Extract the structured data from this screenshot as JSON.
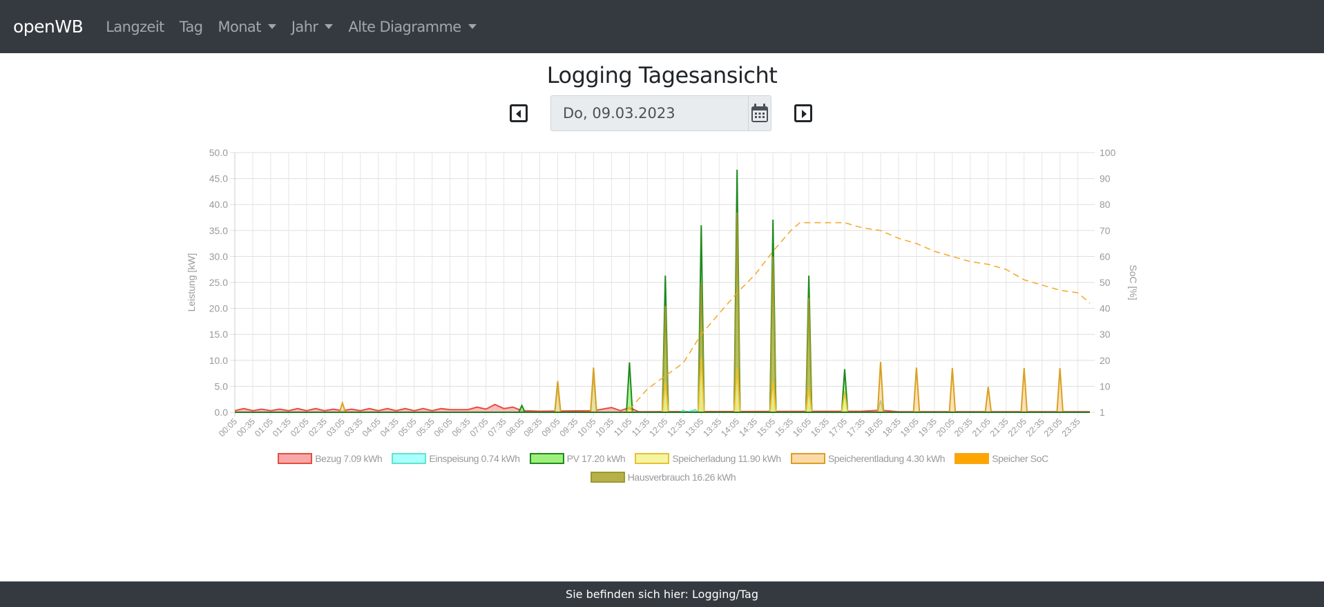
{
  "nav": {
    "brand": "openWB",
    "items": [
      {
        "label": "Langzeit"
      },
      {
        "label": "Tag"
      },
      {
        "label": "Monat",
        "dropdown": true
      },
      {
        "label": "Jahr",
        "dropdown": true
      },
      {
        "label": "Alte Diagramme",
        "dropdown": true
      }
    ]
  },
  "page": {
    "title": "Logging Tagesansicht",
    "date": "Do, 09.03.2023"
  },
  "footer": {
    "text": "Sie befinden sich hier: Logging/Tag"
  },
  "chart_data": {
    "type": "area",
    "ylabel": "Leistung [kW]",
    "y2label": "SoC [%]",
    "ylim": [
      0,
      50
    ],
    "yticks": [
      "0.0",
      "5.0",
      "10.0",
      "15.0",
      "20.0",
      "25.0",
      "30.0",
      "35.0",
      "40.0",
      "45.0",
      "50.0"
    ],
    "y2lim": [
      0,
      100
    ],
    "y2ticks": [
      "1",
      "10",
      "20",
      "30",
      "40",
      "50",
      "60",
      "70",
      "80",
      "90",
      "100"
    ],
    "xrange": [
      "00:05",
      "23:55"
    ],
    "x_interval_min": 5,
    "xticks": [
      "00:05",
      "00:35",
      "01:05",
      "01:35",
      "02:05",
      "02:35",
      "03:05",
      "03:35",
      "04:05",
      "04:35",
      "05:05",
      "05:35",
      "06:05",
      "06:35",
      "07:05",
      "07:35",
      "08:05",
      "08:35",
      "09:05",
      "09:35",
      "10:05",
      "10:35",
      "11:05",
      "11:35",
      "12:05",
      "12:35",
      "13:05",
      "13:35",
      "14:05",
      "14:35",
      "15:05",
      "15:35",
      "16:05",
      "16:35",
      "17:05",
      "17:35",
      "18:05",
      "18:35",
      "19:05",
      "19:35",
      "20:05",
      "20:35",
      "21:05",
      "21:35",
      "22:05",
      "22:35",
      "23:05",
      "23:35"
    ],
    "grid": true,
    "legend_position": "bottom",
    "series": [
      {
        "name": "Bezug 7.09 kWh",
        "color": "#e74c3c",
        "fill": "#f7a8a8",
        "points": [
          [
            "00:05",
            0.3
          ],
          [
            "00:20",
            0.7
          ],
          [
            "00:35",
            0.3
          ],
          [
            "00:50",
            0.6
          ],
          [
            "01:05",
            0.3
          ],
          [
            "01:20",
            0.6
          ],
          [
            "01:35",
            0.3
          ],
          [
            "01:50",
            0.7
          ],
          [
            "02:05",
            0.3
          ],
          [
            "02:20",
            0.7
          ],
          [
            "02:35",
            0.3
          ],
          [
            "02:50",
            0.6
          ],
          [
            "03:05",
            0.3
          ],
          [
            "03:20",
            0.6
          ],
          [
            "03:35",
            0.3
          ],
          [
            "03:50",
            0.7
          ],
          [
            "04:05",
            0.3
          ],
          [
            "04:20",
            0.7
          ],
          [
            "04:35",
            0.3
          ],
          [
            "04:50",
            0.7
          ],
          [
            "05:05",
            0.3
          ],
          [
            "05:20",
            0.7
          ],
          [
            "05:35",
            0.3
          ],
          [
            "05:50",
            0.7
          ],
          [
            "06:05",
            0.5
          ],
          [
            "06:35",
            0.5
          ],
          [
            "06:50",
            1.0
          ],
          [
            "07:05",
            0.6
          ],
          [
            "07:20",
            1.5
          ],
          [
            "07:35",
            0.7
          ],
          [
            "07:50",
            1.0
          ],
          [
            "08:05",
            0.3
          ],
          [
            "08:35",
            0.2
          ],
          [
            "10:05",
            0.3
          ],
          [
            "10:35",
            0.9
          ],
          [
            "10:50",
            0.3
          ],
          [
            "11:05",
            0.9
          ],
          [
            "11:20",
            0.1
          ],
          [
            "17:35",
            0.2
          ],
          [
            "18:05",
            0.4
          ],
          [
            "18:35",
            0.1
          ],
          [
            "23:55",
            0.1
          ]
        ]
      },
      {
        "name": "Einspeisung 0.74 kWh",
        "color": "#5ee6c8",
        "fill": "#aaffff",
        "points": [
          [
            "12:30",
            0
          ],
          [
            "12:35",
            0.4
          ],
          [
            "12:40",
            0
          ],
          [
            "12:50",
            0.3
          ],
          [
            "12:55",
            0.5
          ],
          [
            "13:00",
            0
          ]
        ]
      },
      {
        "name": "PV 17.20 kWh",
        "color": "#1e8a1e",
        "fill": "#9ef07a",
        "points": [
          [
            "08:00",
            0
          ],
          [
            "08:05",
            1.3
          ],
          [
            "08:10",
            0
          ],
          [
            "09:00",
            0
          ],
          [
            "09:05",
            4.8
          ],
          [
            "09:10",
            0
          ],
          [
            "10:00",
            0
          ],
          [
            "10:05",
            7.2
          ],
          [
            "10:10",
            0
          ],
          [
            "11:00",
            0
          ],
          [
            "11:05",
            9.6
          ],
          [
            "11:10",
            0
          ],
          [
            "12:00",
            0
          ],
          [
            "12:05",
            26.3
          ],
          [
            "12:10",
            0
          ],
          [
            "13:00",
            0
          ],
          [
            "13:05",
            36.0
          ],
          [
            "13:10",
            0
          ],
          [
            "14:00",
            0
          ],
          [
            "14:05",
            46.7
          ],
          [
            "14:10",
            0
          ],
          [
            "15:00",
            0
          ],
          [
            "15:05",
            37.1
          ],
          [
            "15:10",
            0
          ],
          [
            "16:00",
            0
          ],
          [
            "16:05",
            26.3
          ],
          [
            "16:10",
            0
          ],
          [
            "17:00",
            0
          ],
          [
            "17:05",
            8.3
          ],
          [
            "17:10",
            0
          ],
          [
            "18:00",
            0
          ],
          [
            "18:05",
            2.3
          ],
          [
            "18:10",
            0
          ]
        ]
      },
      {
        "name": "Hausverbrauch 16.26 kWh",
        "color": "#9a9a2a",
        "fill": "#b5b04a",
        "points": [
          [
            "12:00",
            0
          ],
          [
            "12:05",
            20.5
          ],
          [
            "12:10",
            0
          ],
          [
            "13:00",
            0
          ],
          [
            "13:05",
            25.0
          ],
          [
            "13:10",
            0
          ],
          [
            "14:00",
            0
          ],
          [
            "14:05",
            38.5
          ],
          [
            "14:10",
            0
          ],
          [
            "15:00",
            0
          ],
          [
            "15:05",
            30.0
          ],
          [
            "15:10",
            0
          ],
          [
            "16:00",
            0
          ],
          [
            "16:05",
            22.0
          ],
          [
            "16:10",
            0
          ]
        ]
      },
      {
        "name": "Speicherladung 11.90 kWh",
        "color": "#e8c030",
        "fill": "#f5f5a0",
        "points": [
          [
            "11:00",
            0
          ],
          [
            "11:05",
            1.0
          ],
          [
            "11:10",
            0
          ],
          [
            "12:00",
            0
          ],
          [
            "12:05",
            5.8
          ],
          [
            "12:10",
            0
          ],
          [
            "13:00",
            0
          ],
          [
            "13:05",
            10.5
          ],
          [
            "13:10",
            0
          ],
          [
            "14:00",
            0
          ],
          [
            "14:05",
            8.5
          ],
          [
            "14:10",
            0
          ],
          [
            "15:00",
            0
          ],
          [
            "15:05",
            6.0
          ],
          [
            "15:10",
            0
          ],
          [
            "16:00",
            0
          ],
          [
            "16:05",
            4.7
          ],
          [
            "16:10",
            0
          ],
          [
            "17:00",
            0
          ],
          [
            "17:05",
            4.0
          ],
          [
            "17:10",
            0
          ]
        ]
      },
      {
        "name": "Speicherentladung 4.30 kWh",
        "color": "#d9a020",
        "fill": "#fcd9a8",
        "points": [
          [
            "03:00",
            0
          ],
          [
            "03:05",
            1.8
          ],
          [
            "03:10",
            0
          ],
          [
            "09:00",
            0
          ],
          [
            "09:05",
            6.0
          ],
          [
            "09:10",
            0
          ],
          [
            "10:00",
            0
          ],
          [
            "10:05",
            8.6
          ],
          [
            "10:10",
            0
          ],
          [
            "18:00",
            0
          ],
          [
            "18:05",
            9.7
          ],
          [
            "18:10",
            0
          ],
          [
            "19:00",
            0
          ],
          [
            "19:05",
            8.6
          ],
          [
            "19:10",
            0
          ],
          [
            "20:00",
            0
          ],
          [
            "20:05",
            8.5
          ],
          [
            "20:10",
            0
          ],
          [
            "21:00",
            0
          ],
          [
            "21:05",
            4.9
          ],
          [
            "21:10",
            0
          ],
          [
            "22:00",
            0
          ],
          [
            "22:05",
            8.5
          ],
          [
            "22:10",
            0
          ],
          [
            "23:00",
            0
          ],
          [
            "23:05",
            8.5
          ],
          [
            "23:10",
            0
          ]
        ]
      },
      {
        "name": "Speicher SoC",
        "color": "#f5a623",
        "fill": "#ffa500",
        "axis": "right",
        "dashed": true,
        "points": [
          [
            "11:05",
            1
          ],
          [
            "11:35",
            9
          ],
          [
            "12:05",
            14
          ],
          [
            "12:35",
            19
          ],
          [
            "13:05",
            30
          ],
          [
            "13:35",
            38
          ],
          [
            "14:05",
            46
          ],
          [
            "14:35",
            53
          ],
          [
            "15:05",
            62
          ],
          [
            "15:35",
            70
          ],
          [
            "15:50",
            73
          ],
          [
            "17:05",
            73
          ],
          [
            "17:35",
            71
          ],
          [
            "18:05",
            70
          ],
          [
            "18:35",
            67
          ],
          [
            "19:05",
            65
          ],
          [
            "19:35",
            62
          ],
          [
            "20:05",
            60
          ],
          [
            "20:35",
            58
          ],
          [
            "21:05",
            57
          ],
          [
            "21:35",
            55
          ],
          [
            "22:05",
            51
          ],
          [
            "22:35",
            49
          ],
          [
            "23:05",
            47
          ],
          [
            "23:35",
            46
          ],
          [
            "23:55",
            42
          ]
        ]
      }
    ]
  }
}
